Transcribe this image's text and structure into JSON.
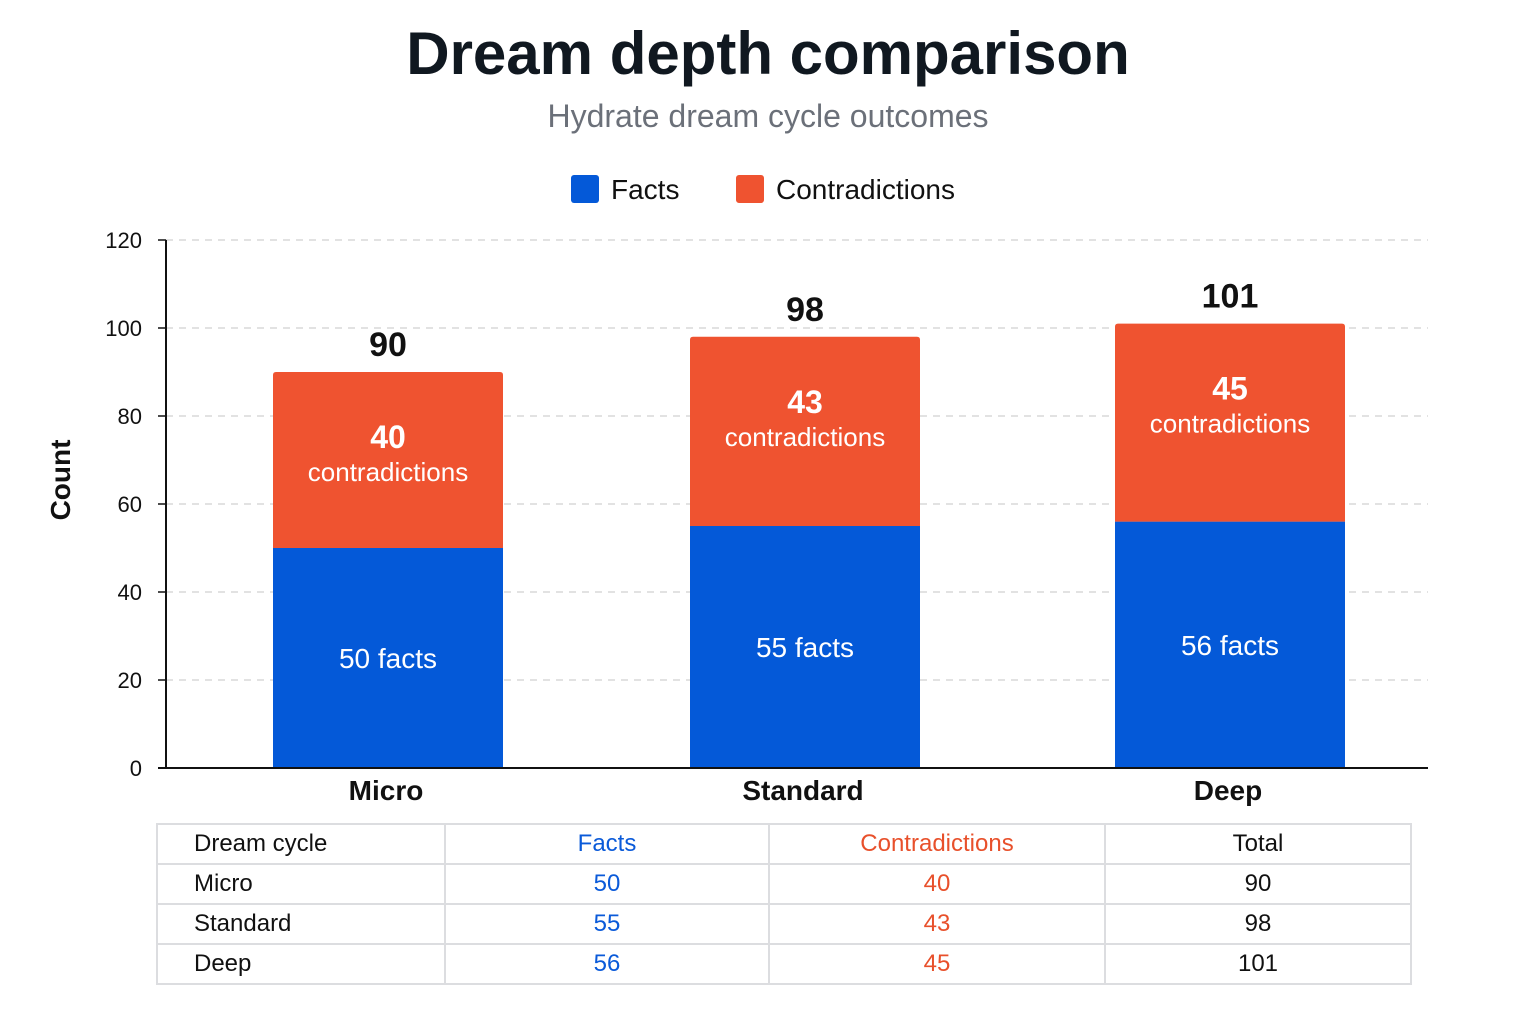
{
  "chart_data": {
    "type": "bar",
    "stacked": true,
    "title": "Dream depth comparison",
    "subtitle": "Hydrate dream cycle outcomes",
    "ylabel": "Count",
    "ylim": [
      0,
      120
    ],
    "yticks": [
      0,
      20,
      40,
      60,
      80,
      100,
      120
    ],
    "grid": true,
    "legend_position": "top-center",
    "categories": [
      "Micro",
      "Standard",
      "Deep"
    ],
    "series": [
      {
        "name": "Facts",
        "color": "#0459d8",
        "values": [
          50,
          55,
          56
        ],
        "label_suffix": "facts"
      },
      {
        "name": "Contradictions",
        "color": "#ef5330",
        "values": [
          40,
          43,
          45
        ],
        "label_suffix": "contradictions"
      }
    ],
    "totals": [
      90,
      98,
      101
    ]
  },
  "table": {
    "headers": [
      "Dream cycle",
      "Facts",
      "Contradictions",
      "Total"
    ],
    "rows": [
      [
        "Micro",
        "50",
        "40",
        "90"
      ],
      [
        "Standard",
        "55",
        "43",
        "98"
      ],
      [
        "Deep",
        "56",
        "45",
        "101"
      ]
    ]
  }
}
